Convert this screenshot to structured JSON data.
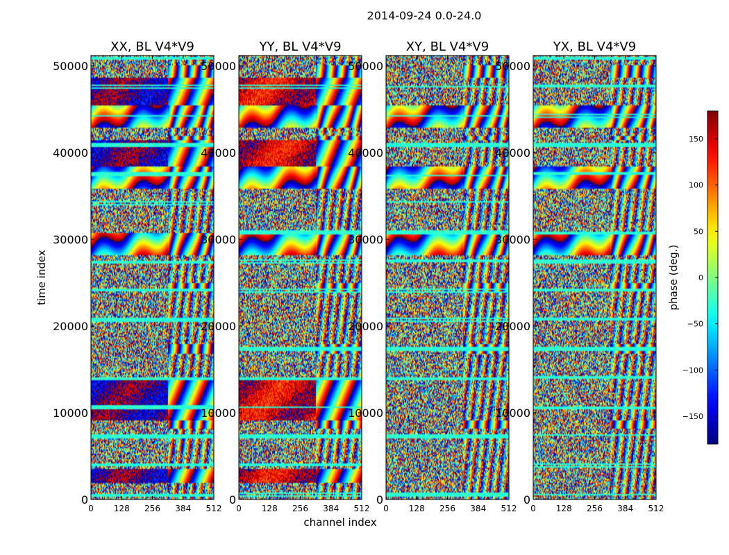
{
  "chart_data": {
    "type": "heatmap",
    "title": "2014-09-24 0.0-24.0",
    "xlabel": "channel index",
    "ylabel": "time index",
    "panels": [
      {
        "title": "XX, BL V4*V9",
        "pol": "XX"
      },
      {
        "title": "YY, BL V4*V9",
        "pol": "YY"
      },
      {
        "title": "XY, BL V4*V9",
        "pol": "XY"
      },
      {
        "title": "YX, BL V4*V9",
        "pol": "YX"
      }
    ],
    "xlim": [
      0,
      512
    ],
    "ylim": [
      0,
      51200
    ],
    "x_ticks": [
      0,
      128,
      256,
      384,
      512
    ],
    "x_tick_labels": [
      "0",
      "128",
      "256",
      "384",
      "512"
    ],
    "y_ticks": [
      0,
      10000,
      20000,
      30000,
      40000,
      50000
    ],
    "y_tick_labels": [
      "0",
      "10000",
      "20000",
      "30000",
      "40000",
      "50000"
    ],
    "colorbar": {
      "label": "phase (deg.)",
      "colormap": "jet",
      "range": [
        -180,
        180
      ],
      "ticks": [
        -150,
        -100,
        -50,
        0,
        50,
        100,
        150
      ],
      "tick_labels": [
        "−150",
        "−100",
        "−50",
        "0",
        "50",
        "100",
        "150"
      ]
    }
  }
}
